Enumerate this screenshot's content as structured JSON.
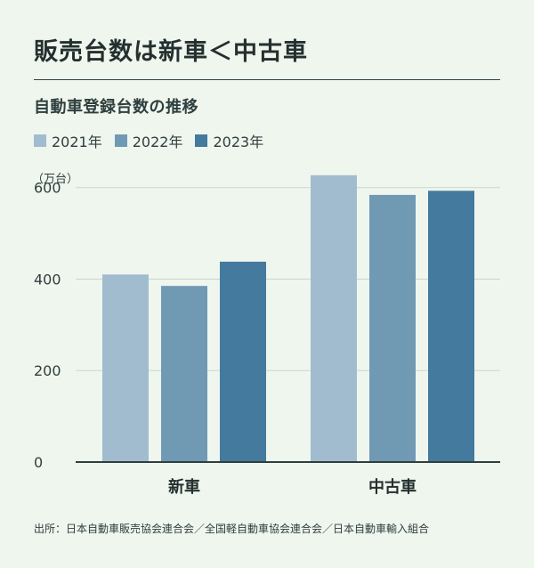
{
  "headline": "販売台数は新車＜中古車",
  "chart_data": {
    "type": "bar",
    "title": "自動車登録台数の推移",
    "unit_label": "（万台）",
    "categories": [
      "新車",
      "中古車"
    ],
    "series": [
      {
        "name": "2021年",
        "color": "#a2bccf",
        "values": [
          410,
          627
        ]
      },
      {
        "name": "2022年",
        "color": "#7099b4",
        "values": [
          385,
          584
        ]
      },
      {
        "name": "2023年",
        "color": "#447a9d",
        "values": [
          438,
          593
        ]
      }
    ],
    "ylim": [
      0,
      650
    ],
    "yticks": [
      0,
      200,
      400,
      600
    ],
    "grid": true,
    "legend_position": "top-left"
  },
  "source": "出所：日本自動車販売協会連合会／全国軽自動車協会連合会／日本自動車輸入組合"
}
